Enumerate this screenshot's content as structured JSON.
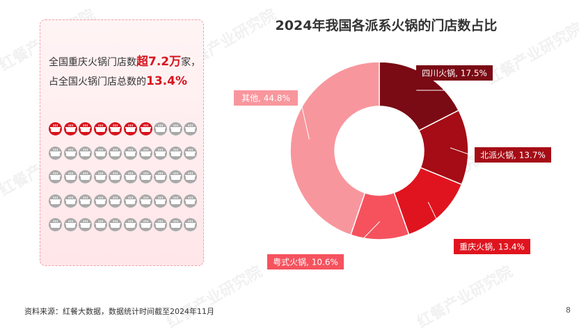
{
  "stat": {
    "line1_prefix": "全国重庆火锅门店数",
    "line1_value": "超7.2万",
    "line1_suffix": "家，",
    "line2_prefix": "占全国火锅门店总数的",
    "line2_value": "13.4%"
  },
  "pictogram": {
    "total": 50,
    "highlighted": 6.7,
    "highlight_color": "#d7141d",
    "base_color": "#a9a9a9"
  },
  "chart_data": {
    "type": "pie",
    "title": "2024年我国各派系火锅的门店数占比",
    "slices": [
      {
        "label": "四川火锅, 17.5%",
        "name": "四川火锅",
        "value": 17.5,
        "color": "#7a0a14"
      },
      {
        "label": "北派火锅, 13.7%",
        "name": "北派火锅",
        "value": 13.7,
        "color": "#a50c15"
      },
      {
        "label": "重庆火锅, 13.4%",
        "name": "重庆火锅",
        "value": 13.4,
        "color": "#e0141e"
      },
      {
        "label": "粤式火锅, 10.6%",
        "name": "粤式火锅",
        "value": 10.6,
        "color": "#f5525e"
      },
      {
        "label": "其他, 44.8%",
        "name": "其他",
        "value": 44.8,
        "color": "#f8969d"
      }
    ]
  },
  "footer": {
    "source": "资料来源：红餐大数据，数据统计时间截至2024年11月",
    "page": "8"
  },
  "watermark": "红餐产业研究院"
}
